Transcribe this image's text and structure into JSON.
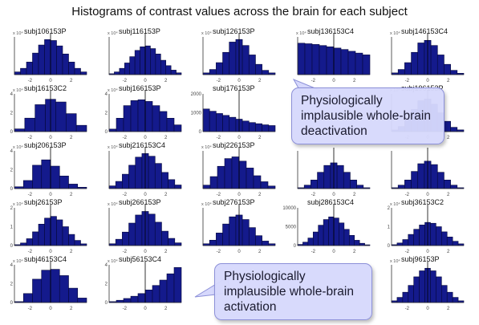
{
  "title": "Histograms of contrast values across the brain for each subject",
  "callouts": [
    {
      "id": "top",
      "text": "Physiologically implausible whole-brain deactivation"
    },
    {
      "id": "bottom",
      "text": "Physiologically implausible whole-brain activation"
    }
  ],
  "colors": {
    "bar": "#141a8c",
    "bar_edge": "#05083a",
    "axis": "#333333",
    "callout_bg": "#d6d8fc"
  },
  "chart_data": [
    {
      "type": "bar",
      "title": "subj106153P",
      "ymax_label": "x 10⁴",
      "yticks": [
        "",
        "",
        ""
      ],
      "xticks": [
        "-2",
        "0",
        "2"
      ],
      "xlim": [
        -3.5,
        3.5
      ],
      "values": [
        0.15,
        0.35,
        0.7,
        1.2,
        1.65,
        1.95,
        1.9,
        1.6,
        1.15,
        0.7,
        0.35,
        0.15
      ],
      "ymax": 2.1
    },
    {
      "type": "bar",
      "title": "subj116153P",
      "ymax_label": "x 10⁴",
      "xticks": [
        "-2",
        "0",
        "2"
      ],
      "xlim": [
        -3.5,
        3.5
      ],
      "values": [
        0.05,
        0.15,
        0.35,
        0.65,
        1.0,
        1.35,
        1.55,
        1.6,
        1.45,
        1.15,
        0.8,
        0.5,
        0.25,
        0.1
      ],
      "ymax": 2.1
    },
    {
      "type": "bar",
      "title": "subj126153P",
      "ymax_label": "x 10⁴",
      "xticks": [
        "-2",
        "0",
        "2"
      ],
      "xlim": [
        -3.5,
        3.5
      ],
      "values": [
        0.1,
        0.3,
        0.7,
        1.3,
        1.9,
        2.05,
        1.7,
        1.15,
        0.6,
        0.25,
        0.1
      ],
      "ymax": 2.2
    },
    {
      "type": "bar",
      "title": "subj136153C4",
      "ymax_label": "x 10⁴",
      "xticks": [
        "-2",
        "0",
        "2"
      ],
      "xlim": [
        -3.5,
        3.5
      ],
      "values": [
        1.75,
        1.72,
        1.68,
        1.62,
        1.55,
        1.48,
        1.4,
        1.3,
        1.2,
        1.1
      ],
      "ymax": 2.1
    },
    {
      "type": "bar",
      "title": "subj146153C4",
      "ymax_label": "x 10⁴",
      "xticks": [
        "-2",
        "0",
        "2"
      ],
      "xlim": [
        -3.5,
        3.5
      ],
      "values": [
        0.1,
        0.3,
        0.7,
        1.3,
        1.85,
        2.0,
        1.7,
        1.15,
        0.6,
        0.25,
        0.08
      ],
      "ymax": 2.2
    },
    {
      "type": "bar",
      "title": "subj16153C2",
      "ymax_label": "x 10⁴",
      "yticks": [
        "0",
        "2",
        "4"
      ],
      "xticks": [
        "-2",
        "0",
        "2"
      ],
      "xlim": [
        -3.5,
        3.5
      ],
      "values": [
        0.3,
        1.5,
        3.0,
        3.6,
        3.3,
        2.0,
        0.7
      ],
      "ymax": 4.2
    },
    {
      "type": "bar",
      "title": "subj166153P",
      "ymax_label": "x 10⁴",
      "yticks": [
        "0",
        "2",
        "4"
      ],
      "xticks": [
        "-2",
        "0",
        "2"
      ],
      "xlim": [
        -3.5,
        3.5
      ],
      "values": [
        0.3,
        1.6,
        3.1,
        3.7,
        3.8,
        3.6,
        3.1,
        2.4,
        1.6,
        0.8
      ],
      "ymax": 4.5
    },
    {
      "type": "bar",
      "title": "subj176153P",
      "ymax_label": "",
      "yticks": [
        "0",
        "1000",
        "2000"
      ],
      "xticks": [
        "-2",
        "0",
        "2"
      ],
      "xlim": [
        -3.5,
        3.5
      ],
      "values": [
        1200,
        1080,
        960,
        860,
        760,
        660,
        560,
        480,
        420,
        360,
        320
      ],
      "ymax": 2000
    },
    {
      "type": "bar",
      "title": "",
      "ymax_label": "",
      "xticks": [],
      "xlim": [
        -3.5,
        3.5
      ],
      "values": [],
      "ymax": 1,
      "hidden": true
    },
    {
      "type": "bar",
      "title": "subj196153P",
      "ymax_label": "x 10⁴",
      "xticks": [
        "-2",
        "0",
        "2"
      ],
      "xlim": [
        -3.5,
        3.5
      ],
      "values": [
        0.1,
        0.3,
        0.7,
        1.3,
        1.8,
        1.9,
        1.6,
        1.1,
        0.6,
        0.25,
        0.1
      ],
      "ymax": 2.2
    },
    {
      "type": "bar",
      "title": "subj206153P",
      "ymax_label": "x 10⁴",
      "yticks": [
        "0",
        "2",
        "4"
      ],
      "xticks": [
        "-2",
        "0",
        "2"
      ],
      "xlim": [
        -3.5,
        3.5
      ],
      "values": [
        0.2,
        0.9,
        2.6,
        3.2,
        2.5,
        1.4,
        0.5,
        0.15
      ],
      "ymax": 4.2
    },
    {
      "type": "bar",
      "title": "subj216153C4",
      "ymax_label": "x 10⁴",
      "xticks": [
        "-2",
        "0",
        "2"
      ],
      "xlim": [
        -3.5,
        3.5
      ],
      "values": [
        0.15,
        0.4,
        0.8,
        1.3,
        1.75,
        1.95,
        1.8,
        1.4,
        0.9,
        0.5,
        0.2
      ],
      "ymax": 2.1
    },
    {
      "type": "bar",
      "title": "subj226153P",
      "ymax_label": "x 10⁴",
      "xticks": [
        "-2",
        "0",
        "2"
      ],
      "xlim": [
        -3.5,
        3.5
      ],
      "values": [
        0.2,
        0.7,
        1.3,
        1.75,
        1.85,
        1.6,
        1.2,
        0.75,
        0.4,
        0.15
      ],
      "ymax": 2.2
    },
    {
      "type": "bar",
      "title": "",
      "ymax_label": "",
      "xticks": [
        "-2",
        "0",
        "2"
      ],
      "xlim": [
        -3.5,
        3.5
      ],
      "values": [
        0.05,
        0.2,
        0.5,
        0.95,
        1.35,
        1.5,
        1.35,
        0.95,
        0.5,
        0.2,
        0.05
      ],
      "ymax": 2.2
    },
    {
      "type": "bar",
      "title": "",
      "ymax_label": "",
      "xticks": [
        "-2",
        "0",
        "2"
      ],
      "xlim": [
        -3.5,
        3.5
      ],
      "values": [
        0.05,
        0.2,
        0.5,
        1.0,
        1.45,
        1.6,
        1.4,
        0.95,
        0.5,
        0.2,
        0.05
      ],
      "ymax": 2.2
    },
    {
      "type": "bar",
      "title": "subj26153P",
      "ymax_label": "x 10⁴",
      "yticks": [
        "0",
        "1",
        "2"
      ],
      "xticks": [
        "-2",
        "0",
        "2"
      ],
      "xlim": [
        -3.5,
        3.5
      ],
      "values": [
        0.05,
        0.15,
        0.4,
        0.8,
        1.25,
        1.6,
        1.7,
        1.5,
        1.1,
        0.65,
        0.3,
        0.1
      ],
      "ymax": 2.2
    },
    {
      "type": "bar",
      "title": "subj266153P",
      "ymax_label": "x 10⁴",
      "xticks": [
        "-2",
        "0",
        "2"
      ],
      "xlim": [
        -3.5,
        3.5
      ],
      "values": [
        0.1,
        0.35,
        0.75,
        1.25,
        1.7,
        1.9,
        1.75,
        1.3,
        0.8,
        0.4,
        0.15
      ],
      "ymax": 2.1
    },
    {
      "type": "bar",
      "title": "subj276153P",
      "ymax_label": "x 10⁴",
      "xticks": [
        "-2",
        "0",
        "2"
      ],
      "xlim": [
        -3.5,
        3.5
      ],
      "values": [
        0.1,
        0.3,
        0.7,
        1.2,
        1.6,
        1.7,
        1.45,
        1.0,
        0.55,
        0.25,
        0.1
      ],
      "ymax": 2.1
    },
    {
      "type": "bar",
      "title": "subj286153C4",
      "ymax_label": "",
      "yticks": [
        "0",
        "5000",
        "10000"
      ],
      "xticks": [
        "-2",
        "0",
        "2"
      ],
      "xlim": [
        -3.5,
        3.5
      ],
      "values": [
        300,
        900,
        2000,
        3600,
        5400,
        6900,
        7600,
        7300,
        6000,
        4300,
        2700,
        1400,
        600,
        200
      ],
      "ymax": 10000
    },
    {
      "type": "bar",
      "title": "subj36153C2",
      "ymax_label": "x 10⁴",
      "yticks": [
        "0",
        "1",
        "2"
      ],
      "xticks": [
        "-2",
        "0",
        "2"
      ],
      "xlim": [
        -3.5,
        3.5
      ],
      "values": [
        0.05,
        0.15,
        0.35,
        0.65,
        0.95,
        1.2,
        1.35,
        1.3,
        1.1,
        0.8,
        0.5,
        0.25,
        0.1
      ],
      "ymax": 2.2
    },
    {
      "type": "bar",
      "title": "subj46153C4",
      "ymax_label": "x 10⁴",
      "yticks": [
        "0",
        "2",
        "4"
      ],
      "xticks": [
        "-2",
        "0",
        "2"
      ],
      "xlim": [
        -3.5,
        3.5
      ],
      "values": [
        0.1,
        1.0,
        2.6,
        3.6,
        3.7,
        3.0,
        1.6,
        0.5
      ],
      "ymax": 4.2
    },
    {
      "type": "bar",
      "title": "subj56153C4",
      "ymax_label": "x 10⁴",
      "yticks": [
        "0",
        "2",
        "4"
      ],
      "xticks": [
        "-2",
        "0",
        "2"
      ],
      "xlim": [
        -3.5,
        3.5
      ],
      "values": [
        0.1,
        0.25,
        0.45,
        0.7,
        1.0,
        1.4,
        1.9,
        2.5,
        3.2,
        3.9
      ],
      "ymax": 4.2
    },
    {
      "type": "bar",
      "title": "",
      "ymax_label": "",
      "xticks": [
        "-2",
        "0",
        "2"
      ],
      "xlim": [
        -3.5,
        3.5
      ],
      "values": [],
      "ymax": 1,
      "hidden": true
    },
    {
      "type": "bar",
      "title": "",
      "ymax_label": "",
      "xticks": [
        "-2",
        "0",
        "2"
      ],
      "xlim": [
        -3.5,
        3.5
      ],
      "values": [],
      "ymax": 1,
      "hidden": true
    },
    {
      "type": "bar",
      "title": "subj96153P",
      "ymax_label": "x 10⁴",
      "xticks": [
        "-2",
        "0",
        "2"
      ],
      "xlim": [
        -3.5,
        3.5
      ],
      "values": [
        0.1,
        0.3,
        0.6,
        1.0,
        1.5,
        1.85,
        2.0,
        1.85,
        1.5,
        1.0,
        0.6,
        0.3,
        0.1
      ],
      "ymax": 2.2
    }
  ]
}
